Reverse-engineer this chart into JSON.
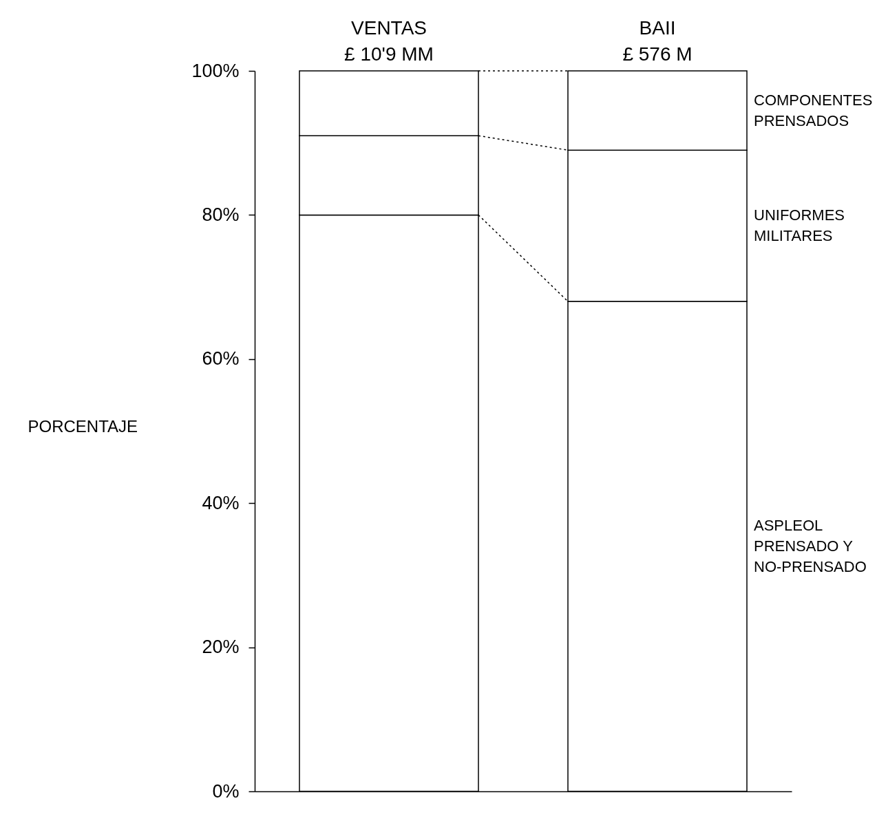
{
  "chart_data": {
    "type": "bar",
    "ylabel": "PORCENTAJE",
    "categories": [
      "VENTAS",
      "BAII"
    ],
    "stacked": true,
    "annotations": [
      "£ 10'9 MM",
      "£ 576 M"
    ],
    "series": [
      {
        "name": "ASPLEOL PRENSADO Y NO-PRENSADO",
        "color": "#ffffff",
        "values": [
          80,
          68
        ]
      },
      {
        "name": "UNIFORMES MILITARES",
        "color": "#ffffff",
        "values": [
          11,
          21
        ]
      },
      {
        "name": "COMPONENTES PRENSADOS",
        "color": "#ffffff",
        "values": [
          9,
          11
        ]
      }
    ],
    "ylim": [
      0,
      100
    ],
    "yticks": [
      {
        "value": 0,
        "label": "0%"
      },
      {
        "value": 20,
        "label": "20%"
      },
      {
        "value": 40,
        "label": "40%"
      },
      {
        "value": 60,
        "label": "60%"
      },
      {
        "value": 80,
        "label": "80%"
      },
      {
        "value": 100,
        "label": "100%"
      }
    ]
  }
}
